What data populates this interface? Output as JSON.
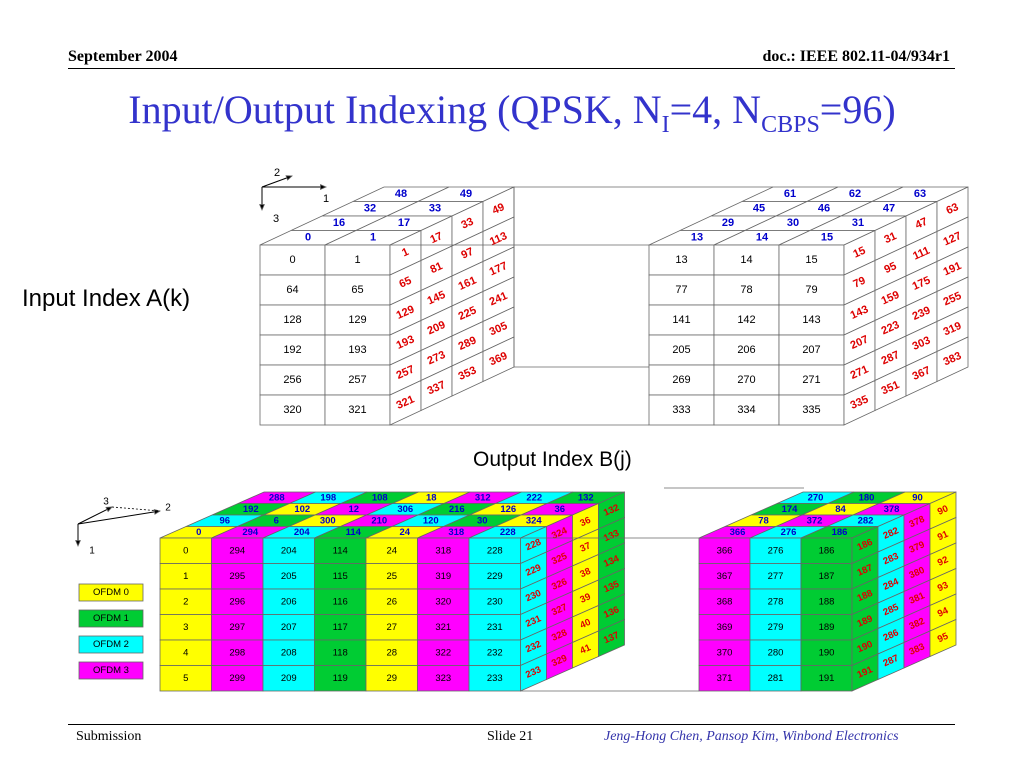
{
  "header": {
    "date": "September 2004",
    "doc": "doc.: IEEE 802.11-04/934r1"
  },
  "title": {
    "main": "Input/Output Indexing (QPSK, N",
    "sub1": "I",
    "mid": "=4, N",
    "sub2": "CBPS",
    "end": "=96)"
  },
  "labels": {
    "input": "Input Index A(k)",
    "output": "Output Index B(j)"
  },
  "axes_top": {
    "a": "2",
    "b": "1",
    "c": "3"
  },
  "axes_bottom": {
    "a": "3",
    "b": "2",
    "c": "1"
  },
  "legend": [
    {
      "label": "OFDM 0",
      "color": "#ffff00"
    },
    {
      "label": "OFDM 1",
      "color": "#00cc33"
    },
    {
      "label": "OFDM 2",
      "color": "#00ffff"
    },
    {
      "label": "OFDM 3",
      "color": "#ff00ff"
    }
  ],
  "input_cube": {
    "left_front": [
      [
        "0",
        "1"
      ],
      [
        "64",
        "65"
      ],
      [
        "128",
        "129"
      ],
      [
        "192",
        "193"
      ],
      [
        "256",
        "257"
      ],
      [
        "320",
        "321"
      ]
    ],
    "left_top_rows": [
      [
        "0",
        "1"
      ],
      [
        "16",
        "17"
      ],
      [
        "32",
        "33"
      ],
      [
        "48",
        "49"
      ]
    ],
    "left_side": [
      [
        "1",
        "17",
        "33",
        "49"
      ],
      [
        "65",
        "81",
        "97",
        "113"
      ],
      [
        "129",
        "145",
        "161",
        "177"
      ],
      [
        "193",
        "209",
        "225",
        "241"
      ],
      [
        "257",
        "273",
        "289",
        "305"
      ],
      [
        "321",
        "337",
        "353",
        "369"
      ]
    ],
    "right_front": [
      [
        "13",
        "14",
        "15"
      ],
      [
        "77",
        "78",
        "79"
      ],
      [
        "141",
        "142",
        "143"
      ],
      [
        "205",
        "206",
        "207"
      ],
      [
        "269",
        "270",
        "271"
      ],
      [
        "333",
        "334",
        "335"
      ]
    ],
    "right_top_rows": [
      [
        "13",
        "14",
        "15"
      ],
      [
        "29",
        "30",
        "31"
      ],
      [
        "45",
        "46",
        "47"
      ],
      [
        "61",
        "62",
        "63"
      ]
    ],
    "right_side": [
      [
        "15",
        "31",
        "47",
        "63"
      ],
      [
        "79",
        "95",
        "111",
        "127"
      ],
      [
        "143",
        "159",
        "175",
        "191"
      ],
      [
        "207",
        "223",
        "239",
        "255"
      ],
      [
        "271",
        "287",
        "303",
        "319"
      ],
      [
        "335",
        "351",
        "367",
        "383"
      ]
    ]
  },
  "output_cube": {
    "left_front": [
      [
        "0",
        "294",
        "204",
        "114",
        "24",
        "318",
        "228"
      ],
      [
        "1",
        "295",
        "205",
        "115",
        "25",
        "319",
        "229"
      ],
      [
        "2",
        "296",
        "206",
        "116",
        "26",
        "320",
        "230"
      ],
      [
        "3",
        "297",
        "207",
        "117",
        "27",
        "321",
        "231"
      ],
      [
        "4",
        "298",
        "208",
        "118",
        "28",
        "322",
        "232"
      ],
      [
        "5",
        "299",
        "209",
        "119",
        "29",
        "323",
        "233"
      ]
    ],
    "left_top_rows": [
      [
        "0",
        "294",
        "204",
        "114",
        "24",
        "318",
        "228"
      ],
      [
        "96",
        "6",
        "300",
        "210",
        "120",
        "30",
        "324"
      ],
      [
        "192",
        "102",
        "12",
        "306",
        "216",
        "126",
        "36"
      ],
      [
        "288",
        "198",
        "108",
        "18",
        "312",
        "222",
        "132"
      ]
    ],
    "left_side": [
      [
        "228",
        "324",
        "36",
        "132"
      ],
      [
        "229",
        "325",
        "37",
        "133"
      ],
      [
        "230",
        "326",
        "38",
        "134"
      ],
      [
        "231",
        "327",
        "39",
        "135"
      ],
      [
        "232",
        "328",
        "40",
        "136"
      ],
      [
        "233",
        "329",
        "41",
        "137"
      ]
    ],
    "right_front": [
      [
        "366",
        "276",
        "186"
      ],
      [
        "367",
        "277",
        "187"
      ],
      [
        "368",
        "278",
        "188"
      ],
      [
        "369",
        "279",
        "189"
      ],
      [
        "370",
        "280",
        "190"
      ],
      [
        "371",
        "281",
        "191"
      ]
    ],
    "right_top_rows": [
      [
        "366",
        "276",
        "186"
      ],
      [
        "78",
        "372",
        "282"
      ],
      [
        "174",
        "84",
        "378"
      ],
      [
        "270",
        "180",
        "90"
      ]
    ],
    "right_side": [
      [
        "186",
        "282",
        "378",
        "90"
      ],
      [
        "187",
        "283",
        "379",
        "91"
      ],
      [
        "188",
        "284",
        "380",
        "92"
      ],
      [
        "189",
        "285",
        "381",
        "93"
      ],
      [
        "190",
        "286",
        "382",
        "94"
      ],
      [
        "191",
        "287",
        "383",
        "95"
      ]
    ]
  },
  "colors": {
    "blue_text": "#0000cc",
    "red_text": "#dd0000",
    "title": "#3333cc",
    "footer_right": "#3333aa"
  },
  "footer": {
    "left": "Submission",
    "mid": "Slide 21",
    "right": "Jeng-Hong Chen, Pansop Kim, Winbond Electronics"
  }
}
